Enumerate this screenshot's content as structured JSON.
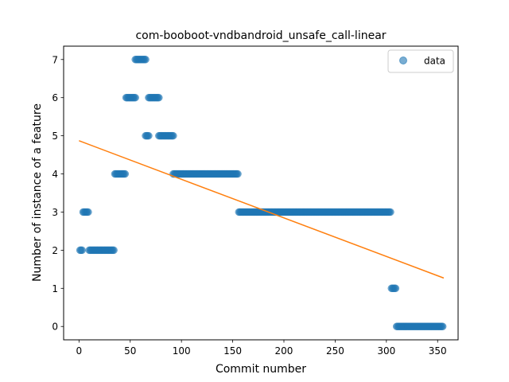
{
  "chart_data": {
    "type": "scatter",
    "title": "com-booboot-vndbandroid_unsafe_call-linear",
    "xlabel": "Commit number",
    "ylabel": "Number of instance of a feature",
    "xlim": [
      -15,
      370
    ],
    "ylim": [
      -0.35,
      7.35
    ],
    "xticks": [
      0,
      50,
      100,
      150,
      200,
      250,
      300,
      350
    ],
    "yticks": [
      0,
      1,
      2,
      3,
      4,
      5,
      6,
      7
    ],
    "legend": {
      "position": "top-right",
      "entries": [
        "data"
      ]
    },
    "colors": {
      "data": "#1f77b4",
      "fit": "#ff7f0e"
    },
    "series": [
      {
        "name": "data",
        "kind": "scatter",
        "segments": [
          {
            "x_start": 1,
            "x_end": 3,
            "y": 2
          },
          {
            "x_start": 4,
            "x_end": 9,
            "y": 3
          },
          {
            "x_start": 10,
            "x_end": 34,
            "y": 2
          },
          {
            "x_start": 35,
            "x_end": 45,
            "y": 4
          },
          {
            "x_start": 46,
            "x_end": 55,
            "y": 6
          },
          {
            "x_start": 55,
            "x_end": 65,
            "y": 7
          },
          {
            "x_start": 65,
            "x_end": 68,
            "y": 5
          },
          {
            "x_start": 68,
            "x_end": 78,
            "y": 6
          },
          {
            "x_start": 78,
            "x_end": 92,
            "y": 5
          },
          {
            "x_start": 92,
            "x_end": 155,
            "y": 4
          },
          {
            "x_start": 156,
            "x_end": 304,
            "y": 3
          },
          {
            "x_start": 305,
            "x_end": 309,
            "y": 1
          },
          {
            "x_start": 310,
            "x_end": 355,
            "y": 0
          }
        ]
      },
      {
        "kind": "line",
        "x": [
          0,
          356
        ],
        "y": [
          4.87,
          1.27
        ]
      }
    ]
  }
}
